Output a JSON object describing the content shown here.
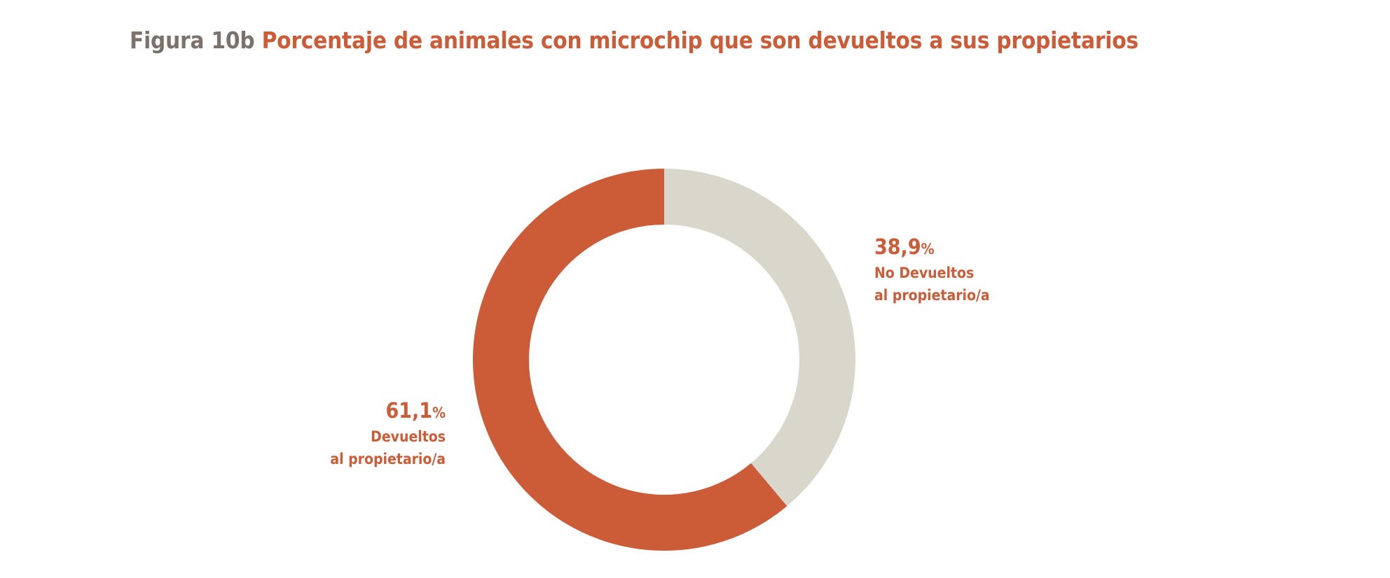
{
  "title": {
    "figure_number": "Figura 10b",
    "text": "Porcentaje de animales con microchip que son devueltos a sus propietarios"
  },
  "colors": {
    "accent": "#cc5c38",
    "muted": "#d9d6cb",
    "figure_number": "#7a726b"
  },
  "chart_data": {
    "type": "pie",
    "variant": "donut",
    "title": "Porcentaje de animales con microchip que son devueltos a sus propietarios",
    "slices": [
      {
        "name": "No Devueltos al propietario/a",
        "value": 38.9,
        "value_text": "38,9",
        "unit": "%",
        "label_line1": "No Devueltos",
        "label_line2": "al propietario/a",
        "color": "#d9d6cb"
      },
      {
        "name": "Devueltos al propietario/a",
        "value": 61.1,
        "value_text": "61,1",
        "unit": "%",
        "label_line1": "Devueltos",
        "label_line2": "al propietario/a",
        "color": "#cc5c38"
      }
    ]
  }
}
